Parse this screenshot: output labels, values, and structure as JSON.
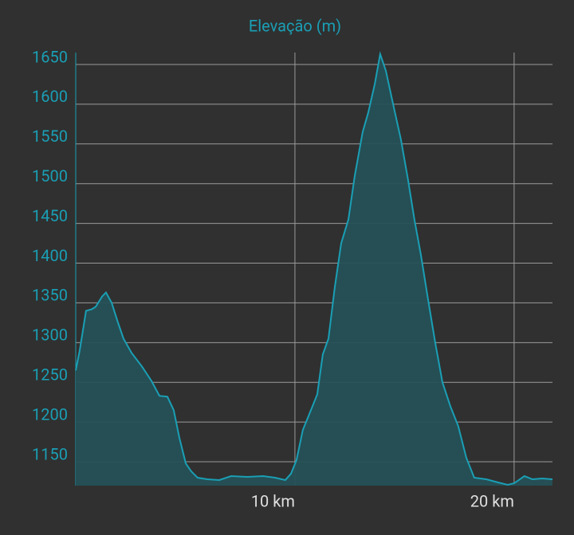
{
  "chart_data": {
    "type": "area",
    "title": "Elevação (m)",
    "x": [
      0,
      0.18,
      0.47,
      0.73,
      0.91,
      1.2,
      1.38,
      1.64,
      1.93,
      2.18,
      2.55,
      3.02,
      3.45,
      3.82,
      4.18,
      4.47,
      4.73,
      5.02,
      5.27,
      5.56,
      6.0,
      6.55,
      7.09,
      7.82,
      8.55,
      9.09,
      9.56,
      9.82,
      10.07,
      10.36,
      10.73,
      11.02,
      11.27,
      11.53,
      11.82,
      12.11,
      12.44,
      12.73,
      13.09,
      13.35,
      13.64,
      13.89,
      14.15,
      14.44,
      14.84,
      15.16,
      15.45,
      15.75,
      16.07,
      16.4,
      16.73,
      17.09,
      17.45,
      17.82,
      18.18,
      18.73,
      19.27,
      19.71,
      20.0,
      20.47,
      20.84,
      21.27,
      21.75
    ],
    "values": [
      1265,
      1290,
      1340,
      1342,
      1345,
      1358,
      1363,
      1350,
      1325,
      1305,
      1287,
      1270,
      1252,
      1233,
      1232,
      1215,
      1180,
      1148,
      1138,
      1130,
      1128,
      1127,
      1132,
      1131,
      1132,
      1130,
      1127,
      1135,
      1152,
      1190,
      1215,
      1235,
      1285,
      1305,
      1370,
      1425,
      1455,
      1510,
      1565,
      1590,
      1625,
      1663,
      1642,
      1605,
      1555,
      1505,
      1455,
      1410,
      1355,
      1300,
      1250,
      1220,
      1195,
      1155,
      1130,
      1128,
      1124,
      1121,
      1123,
      1132,
      1128,
      1129,
      1128
    ],
    "color": "#1a9fb5",
    "area_color": "#255157",
    "xlim": [
      0,
      21.75
    ],
    "xticks": [
      {
        "value": 10,
        "label": "10 km"
      },
      {
        "value": 20,
        "label": "20 km"
      }
    ],
    "ylim": [
      1120,
      1665
    ],
    "yticks": [
      1150,
      1200,
      1250,
      1300,
      1350,
      1400,
      1450,
      1500,
      1550,
      1600,
      1650
    ],
    "grid": true
  }
}
